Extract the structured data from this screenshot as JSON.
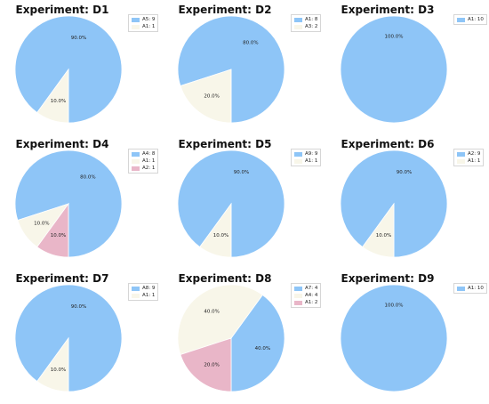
{
  "colors": {
    "blue": "#8ec5f7",
    "cream": "#f8f6e9",
    "pink": "#e9b6c8",
    "edge": "#ffffff",
    "label": "#222222"
  },
  "chart_data": [
    {
      "type": "pie",
      "title": "Experiment: D1",
      "slices": [
        {
          "label": "A5: 9",
          "value": 9,
          "pct": "90.0%",
          "color": "blue"
        },
        {
          "label": "A1: 1",
          "value": 1,
          "pct": "10.0%",
          "color": "cream"
        }
      ],
      "legend_position": "top-right"
    },
    {
      "type": "pie",
      "title": "Experiment: D2",
      "slices": [
        {
          "label": "A1: 8",
          "value": 8,
          "pct": "80.0%",
          "color": "blue"
        },
        {
          "label": "A3: 2",
          "value": 2,
          "pct": "20.0%",
          "color": "cream"
        }
      ],
      "legend_position": "top-right"
    },
    {
      "type": "pie",
      "title": "Experiment: D3",
      "slices": [
        {
          "label": "A1: 10",
          "value": 10,
          "pct": "100.0%",
          "color": "blue"
        }
      ],
      "legend_position": "top-right"
    },
    {
      "type": "pie",
      "title": "Experiment: D4",
      "slices": [
        {
          "label": "A4: 8",
          "value": 8,
          "pct": "80.0%",
          "color": "blue"
        },
        {
          "label": "A1: 1",
          "value": 1,
          "pct": "10.0%",
          "color": "cream"
        },
        {
          "label": "A2: 1",
          "value": 1,
          "pct": "10.0%",
          "color": "pink"
        }
      ],
      "legend_position": "top-right"
    },
    {
      "type": "pie",
      "title": "Experiment: D5",
      "slices": [
        {
          "label": "A9: 9",
          "value": 9,
          "pct": "90.0%",
          "color": "blue"
        },
        {
          "label": "A1: 1",
          "value": 1,
          "pct": "10.0%",
          "color": "cream"
        }
      ],
      "legend_position": "top-right"
    },
    {
      "type": "pie",
      "title": "Experiment: D6",
      "slices": [
        {
          "label": "A2: 9",
          "value": 9,
          "pct": "90.0%",
          "color": "blue"
        },
        {
          "label": "A1: 1",
          "value": 1,
          "pct": "10.0%",
          "color": "cream"
        }
      ],
      "legend_position": "top-right"
    },
    {
      "type": "pie",
      "title": "Experiment: D7",
      "slices": [
        {
          "label": "A8: 9",
          "value": 9,
          "pct": "90.0%",
          "color": "blue"
        },
        {
          "label": "A1: 1",
          "value": 1,
          "pct": "10.0%",
          "color": "cream"
        }
      ],
      "legend_position": "top-right"
    },
    {
      "type": "pie",
      "title": "Experiment: D8",
      "slices": [
        {
          "label": "A7: 4",
          "value": 4,
          "pct": "40.0%",
          "color": "blue"
        },
        {
          "label": "A4: 4",
          "value": 4,
          "pct": "40.0%",
          "color": "cream"
        },
        {
          "label": "A1: 2",
          "value": 2,
          "pct": "20.0%",
          "color": "pink"
        }
      ],
      "legend_position": "top-right"
    },
    {
      "type": "pie",
      "title": "Experiment: D9",
      "slices": [
        {
          "label": "A1: 10",
          "value": 10,
          "pct": "100.0%",
          "color": "blue"
        }
      ],
      "legend_position": "top-right"
    }
  ]
}
